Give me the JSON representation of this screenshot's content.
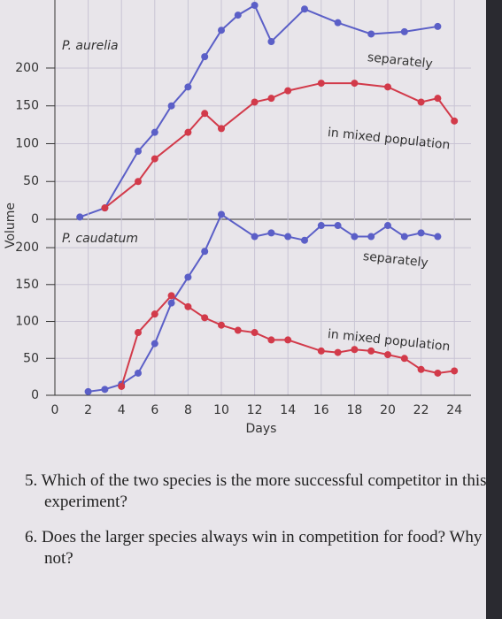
{
  "chart_data": [
    {
      "type": "line",
      "title": "P. aurelia",
      "y_label": "Volume",
      "annotations": [
        "separately",
        "in mixed population"
      ],
      "xlim": [
        0,
        25
      ],
      "xticks": [
        0,
        2,
        4,
        6,
        8,
        10,
        12,
        14,
        16,
        18,
        20,
        22,
        24
      ],
      "ylim": [
        0,
        290
      ],
      "yticks": [
        0,
        50,
        100,
        150,
        200
      ],
      "grid": true,
      "series": [
        {
          "name": "separately",
          "color": "#5b5fc7",
          "x": [
            1.5,
            3,
            5,
            6,
            7,
            8,
            9,
            10,
            11,
            12,
            13,
            15,
            17,
            19,
            21,
            23
          ],
          "values": [
            3,
            15,
            90,
            115,
            150,
            175,
            215,
            250,
            270,
            283,
            235,
            278,
            260,
            245,
            248,
            255
          ]
        },
        {
          "name": "in mixed population",
          "color": "#d23a4a",
          "x": [
            3,
            5,
            6,
            8,
            9,
            10,
            12,
            13,
            14,
            16,
            18,
            20,
            22,
            23,
            24
          ],
          "values": [
            15,
            50,
            80,
            115,
            140,
            120,
            155,
            160,
            170,
            180,
            180,
            175,
            155,
            160,
            130
          ]
        }
      ]
    },
    {
      "type": "line",
      "title": "P. caudatum",
      "x_label": "Days",
      "annotations": [
        "separately",
        "in mixed population"
      ],
      "xlim": [
        0,
        25
      ],
      "xticks": [
        0,
        2,
        4,
        6,
        8,
        10,
        12,
        14,
        16,
        18,
        20,
        22,
        24
      ],
      "ylim": [
        0,
        248
      ],
      "yticks": [
        0,
        50,
        100,
        150,
        200
      ],
      "grid": true,
      "series": [
        {
          "name": "separately",
          "color": "#5b5fc7",
          "x": [
            2,
            3,
            4,
            5,
            6,
            7,
            8,
            9,
            10,
            12,
            13,
            14,
            15,
            16,
            17,
            18,
            19,
            20,
            21,
            22,
            23
          ],
          "values": [
            5,
            8,
            15,
            30,
            70,
            125,
            160,
            195,
            245,
            215,
            220,
            215,
            210,
            230,
            230,
            215,
            215,
            230,
            215,
            220,
            215
          ]
        },
        {
          "name": "in mixed population",
          "color": "#d23a4a",
          "x": [
            4,
            5,
            6,
            7,
            8,
            9,
            10,
            11,
            12,
            13,
            14,
            16,
            17,
            18,
            19,
            20,
            21,
            22,
            23,
            24
          ],
          "values": [
            12,
            85,
            110,
            135,
            120,
            105,
            95,
            88,
            85,
            75,
            75,
            60,
            58,
            62,
            60,
            55,
            50,
            35,
            30,
            33
          ]
        }
      ]
    }
  ],
  "questions": [
    "5. Which of the two species is the more successful competitor in this experiment?",
    "6. Does the larger species always win in competition for food? Why not?"
  ]
}
